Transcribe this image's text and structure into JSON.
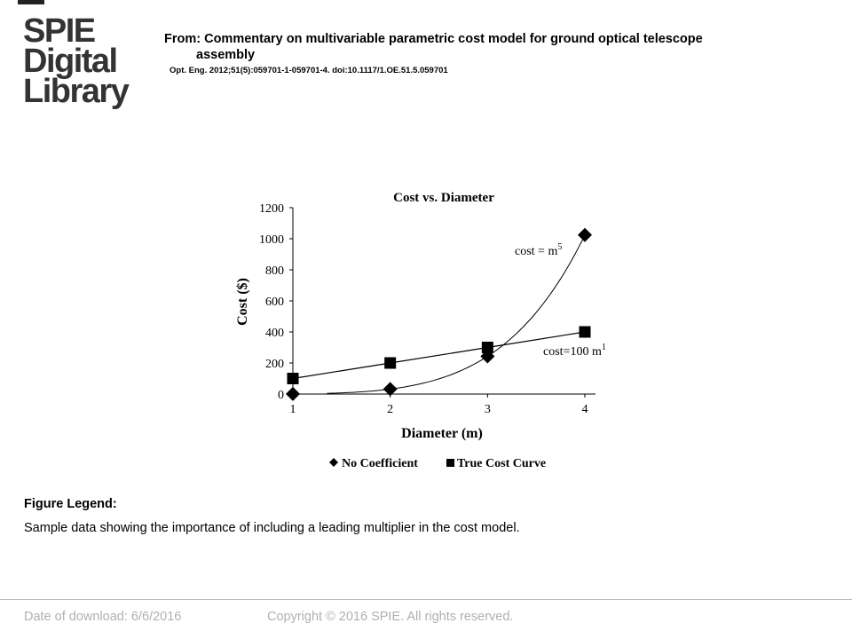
{
  "logo": {
    "line1": "SPIE",
    "line2": "Digital",
    "line3": "Library"
  },
  "header": {
    "from_line1": "From: Commentary on multivariable parametric cost model for ground optical telescope",
    "from_line2": "assembly",
    "citation": "Opt. Eng. 2012;51(5):059701-1-059701-4. doi:10.1117/1.OE.51.5.059701"
  },
  "figure_legend": {
    "title": "Figure Legend:",
    "text": "Sample data showing the importance of including a leading multiplier in the cost model."
  },
  "footer": {
    "date": "Date of download:  6/6/2016",
    "copyright": "Copyright © 2016 SPIE. All rights reserved."
  },
  "chart_data": {
    "type": "scatter",
    "title": "Cost vs. Diameter",
    "xlabel": "Diameter (m)",
    "ylabel": "Cost ($)",
    "xlim": [
      1,
      4
    ],
    "ylim": [
      0,
      1200
    ],
    "x_ticks": [
      1,
      2,
      3,
      4
    ],
    "y_ticks": [
      0,
      200,
      400,
      600,
      800,
      1000,
      1200
    ],
    "grid": false,
    "legend_position": "bottom",
    "series": [
      {
        "name": "No Coefficient",
        "marker": "diamond",
        "x": [
          1,
          2,
          3,
          4
        ],
        "y": [
          1,
          32,
          243,
          1024
        ]
      },
      {
        "name": "True Cost Curve",
        "marker": "square",
        "x": [
          1,
          2,
          3,
          4
        ],
        "y": [
          100,
          200,
          300,
          400
        ]
      }
    ],
    "annotations": [
      {
        "text": "cost = m",
        "sup": "5"
      },
      {
        "text": "cost=100 m",
        "sup": "1"
      }
    ]
  }
}
